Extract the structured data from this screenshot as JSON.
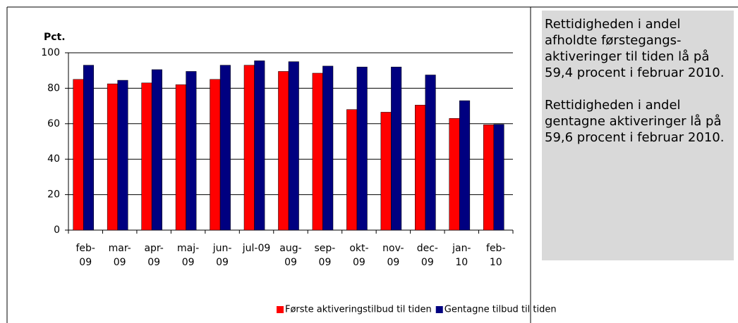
{
  "chart_data": {
    "type": "bar",
    "y_label": "Pct.",
    "categories": [
      "feb-09",
      "mar-09",
      "apr-09",
      "maj-09",
      "jun-09",
      "jul-09",
      "aug-09",
      "sep-09",
      "okt-09",
      "nov-09",
      "dec-09",
      "jan-10",
      "feb-10"
    ],
    "series": [
      {
        "name": "Første aktiveringstilbud til tiden",
        "color": "#ff0000",
        "values": [
          85,
          82.5,
          83,
          82,
          85,
          93,
          89.5,
          88.5,
          68,
          66.5,
          70.5,
          63,
          59.4
        ]
      },
      {
        "name": "Gentagne tilbud til tiden",
        "color": "#000080",
        "values": [
          93,
          84.5,
          90.5,
          89.5,
          93,
          95.5,
          95,
          92.5,
          92,
          92,
          87.5,
          73,
          59.6
        ]
      }
    ],
    "ylim": [
      0,
      100
    ],
    "yticks": [
      0,
      20,
      40,
      60,
      80,
      100
    ],
    "grid": true,
    "legend": "bottom"
  },
  "side_panel": {
    "paragraphs": [
      "Rettidigheden i andel afholdte førstegangs-aktiveringer til tiden lå på 59,4 procent i februar 2010.",
      "Rettidigheden i andel gentagne aktiveringer lå på 59,6 procent i februar 2010."
    ]
  }
}
